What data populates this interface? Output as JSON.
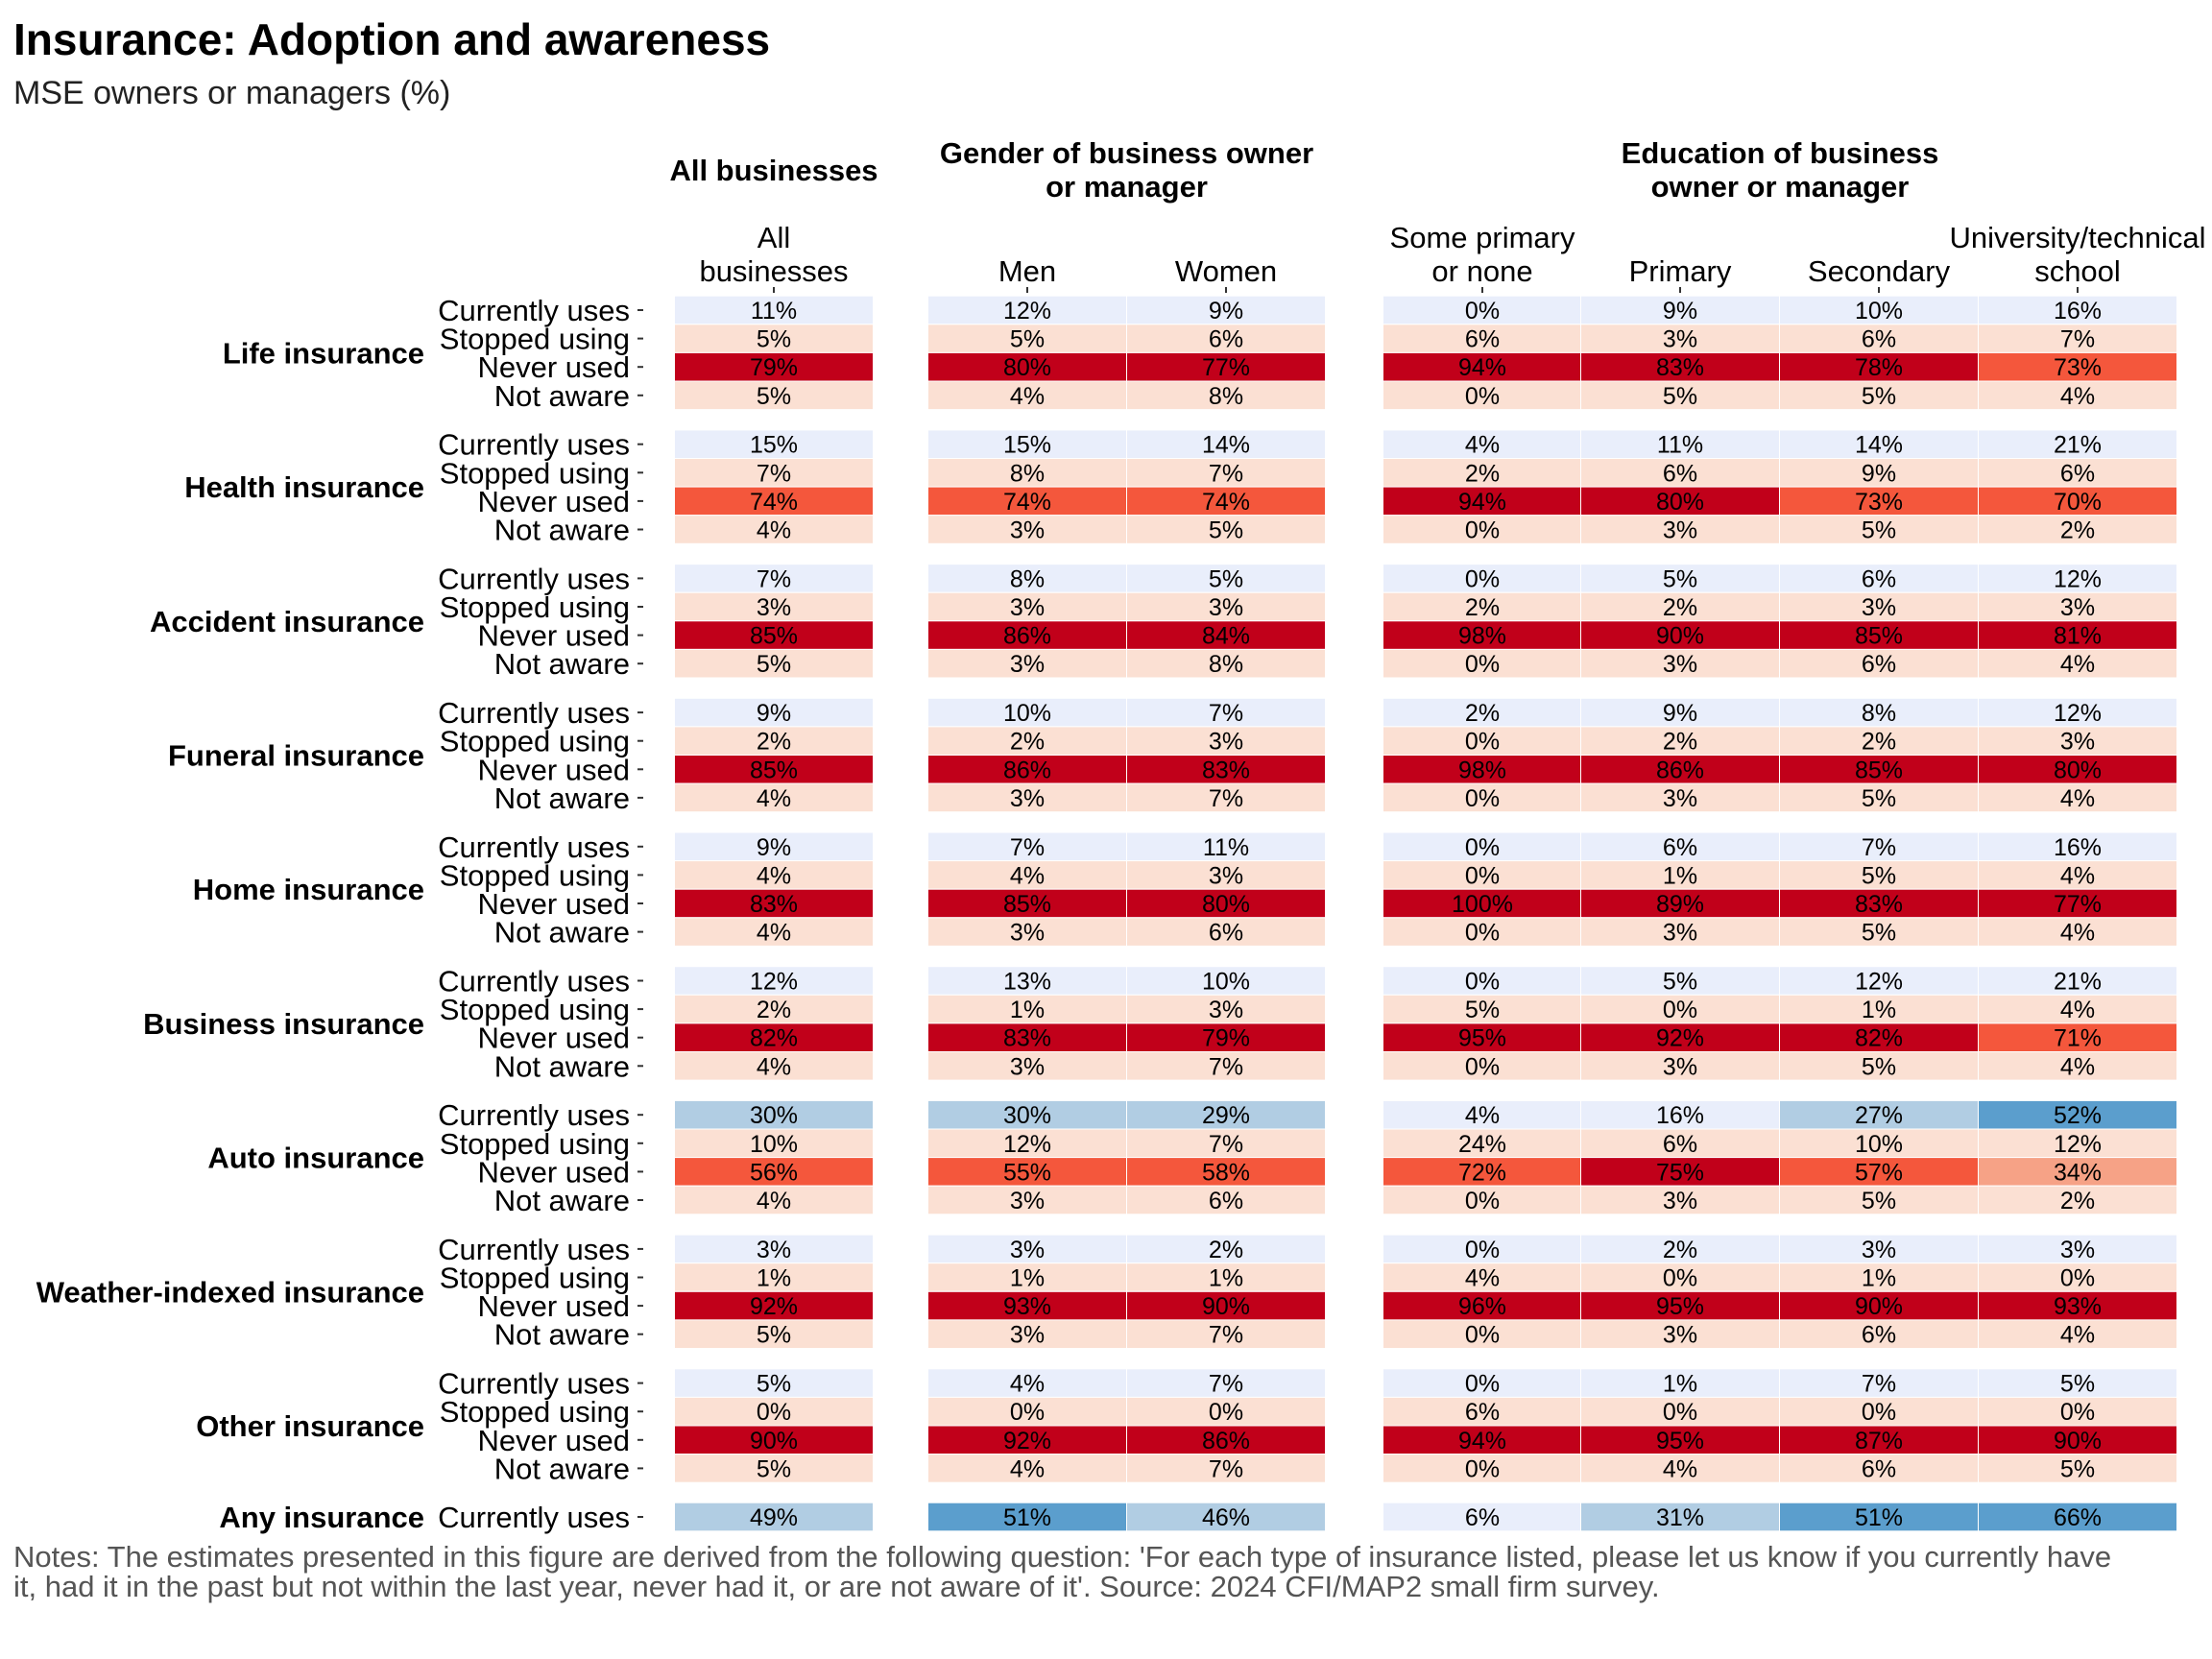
{
  "title": "Insurance: Adoption and awareness",
  "subtitle": "MSE owners or managers (%)",
  "notes": "Notes: The estimates presented in this figure are derived from the following question: 'For each type of insurance listed, please let us know if you currently have it, had it in the past but not within the last year, never had it, or are not aware of it'. Source: 2024 CFI/MAP2 small firm survey.",
  "colors": {
    "blue_dark": "#5b9ecd",
    "blue_mid": "#b1cde3",
    "blue_light": "#e9eefb",
    "red_light": "#fbe0d3",
    "red_mid_light": "#f6a286",
    "red_mid": "#f4573c",
    "red_dark": "#c1001a"
  },
  "chart_data": {
    "type": "table",
    "groups": [
      {
        "title": [
          "All businesses"
        ],
        "columns": [
          [
            "All",
            "businesses"
          ]
        ]
      },
      {
        "title": [
          "Gender of business owner",
          "or manager"
        ],
        "columns": [
          [
            "Men"
          ],
          [
            "Women"
          ]
        ]
      },
      {
        "title": [
          "Education of business",
          "owner or manager"
        ],
        "columns": [
          [
            "Some primary",
            "or none"
          ],
          [
            "Primary"
          ],
          [
            "Secondary"
          ],
          [
            "University/technical",
            "school"
          ]
        ]
      }
    ],
    "sections": [
      {
        "name": "Life insurance",
        "rows": [
          {
            "label": "Currently uses",
            "values": [
              "11%",
              "12%",
              "9%",
              "0%",
              "9%",
              "10%",
              "16%"
            ],
            "colors": [
              "blue_light",
              "blue_light",
              "blue_light",
              "blue_light",
              "blue_light",
              "blue_light",
              "blue_light"
            ]
          },
          {
            "label": "Stopped using",
            "values": [
              "5%",
              "5%",
              "6%",
              "6%",
              "3%",
              "6%",
              "7%"
            ],
            "colors": [
              "red_light",
              "red_light",
              "red_light",
              "red_light",
              "red_light",
              "red_light",
              "red_light"
            ]
          },
          {
            "label": "Never used",
            "values": [
              "79%",
              "80%",
              "77%",
              "94%",
              "83%",
              "78%",
              "73%"
            ],
            "colors": [
              "red_dark",
              "red_dark",
              "red_dark",
              "red_dark",
              "red_dark",
              "red_dark",
              "red_mid"
            ]
          },
          {
            "label": "Not aware",
            "values": [
              "5%",
              "4%",
              "8%",
              "0%",
              "5%",
              "5%",
              "4%"
            ],
            "colors": [
              "red_light",
              "red_light",
              "red_light",
              "red_light",
              "red_light",
              "red_light",
              "red_light"
            ]
          }
        ]
      },
      {
        "name": "Health insurance",
        "rows": [
          {
            "label": "Currently uses",
            "values": [
              "15%",
              "15%",
              "14%",
              "4%",
              "11%",
              "14%",
              "21%"
            ],
            "colors": [
              "blue_light",
              "blue_light",
              "blue_light",
              "blue_light",
              "blue_light",
              "blue_light",
              "blue_light"
            ]
          },
          {
            "label": "Stopped using",
            "values": [
              "7%",
              "8%",
              "7%",
              "2%",
              "6%",
              "9%",
              "6%"
            ],
            "colors": [
              "red_light",
              "red_light",
              "red_light",
              "red_light",
              "red_light",
              "red_light",
              "red_light"
            ]
          },
          {
            "label": "Never used",
            "values": [
              "74%",
              "74%",
              "74%",
              "94%",
              "80%",
              "73%",
              "70%"
            ],
            "colors": [
              "red_mid",
              "red_mid",
              "red_mid",
              "red_dark",
              "red_dark",
              "red_mid",
              "red_mid"
            ]
          },
          {
            "label": "Not aware",
            "values": [
              "4%",
              "3%",
              "5%",
              "0%",
              "3%",
              "5%",
              "2%"
            ],
            "colors": [
              "red_light",
              "red_light",
              "red_light",
              "red_light",
              "red_light",
              "red_light",
              "red_light"
            ]
          }
        ]
      },
      {
        "name": "Accident insurance",
        "rows": [
          {
            "label": "Currently uses",
            "values": [
              "7%",
              "8%",
              "5%",
              "0%",
              "5%",
              "6%",
              "12%"
            ],
            "colors": [
              "blue_light",
              "blue_light",
              "blue_light",
              "blue_light",
              "blue_light",
              "blue_light",
              "blue_light"
            ]
          },
          {
            "label": "Stopped using",
            "values": [
              "3%",
              "3%",
              "3%",
              "2%",
              "2%",
              "3%",
              "3%"
            ],
            "colors": [
              "red_light",
              "red_light",
              "red_light",
              "red_light",
              "red_light",
              "red_light",
              "red_light"
            ]
          },
          {
            "label": "Never used",
            "values": [
              "85%",
              "86%",
              "84%",
              "98%",
              "90%",
              "85%",
              "81%"
            ],
            "colors": [
              "red_dark",
              "red_dark",
              "red_dark",
              "red_dark",
              "red_dark",
              "red_dark",
              "red_dark"
            ]
          },
          {
            "label": "Not aware",
            "values": [
              "5%",
              "3%",
              "8%",
              "0%",
              "3%",
              "6%",
              "4%"
            ],
            "colors": [
              "red_light",
              "red_light",
              "red_light",
              "red_light",
              "red_light",
              "red_light",
              "red_light"
            ]
          }
        ]
      },
      {
        "name": "Funeral insurance",
        "rows": [
          {
            "label": "Currently uses",
            "values": [
              "9%",
              "10%",
              "7%",
              "2%",
              "9%",
              "8%",
              "12%"
            ],
            "colors": [
              "blue_light",
              "blue_light",
              "blue_light",
              "blue_light",
              "blue_light",
              "blue_light",
              "blue_light"
            ]
          },
          {
            "label": "Stopped using",
            "values": [
              "2%",
              "2%",
              "3%",
              "0%",
              "2%",
              "2%",
              "3%"
            ],
            "colors": [
              "red_light",
              "red_light",
              "red_light",
              "red_light",
              "red_light",
              "red_light",
              "red_light"
            ]
          },
          {
            "label": "Never used",
            "values": [
              "85%",
              "86%",
              "83%",
              "98%",
              "86%",
              "85%",
              "80%"
            ],
            "colors": [
              "red_dark",
              "red_dark",
              "red_dark",
              "red_dark",
              "red_dark",
              "red_dark",
              "red_dark"
            ]
          },
          {
            "label": "Not aware",
            "values": [
              "4%",
              "3%",
              "7%",
              "0%",
              "3%",
              "5%",
              "4%"
            ],
            "colors": [
              "red_light",
              "red_light",
              "red_light",
              "red_light",
              "red_light",
              "red_light",
              "red_light"
            ]
          }
        ]
      },
      {
        "name": "Home insurance",
        "rows": [
          {
            "label": "Currently uses",
            "values": [
              "9%",
              "7%",
              "11%",
              "0%",
              "6%",
              "7%",
              "16%"
            ],
            "colors": [
              "blue_light",
              "blue_light",
              "blue_light",
              "blue_light",
              "blue_light",
              "blue_light",
              "blue_light"
            ]
          },
          {
            "label": "Stopped using",
            "values": [
              "4%",
              "4%",
              "3%",
              "0%",
              "1%",
              "5%",
              "4%"
            ],
            "colors": [
              "red_light",
              "red_light",
              "red_light",
              "red_light",
              "red_light",
              "red_light",
              "red_light"
            ]
          },
          {
            "label": "Never used",
            "values": [
              "83%",
              "85%",
              "80%",
              "100%",
              "89%",
              "83%",
              "77%"
            ],
            "colors": [
              "red_dark",
              "red_dark",
              "red_dark",
              "red_dark",
              "red_dark",
              "red_dark",
              "red_dark"
            ]
          },
          {
            "label": "Not aware",
            "values": [
              "4%",
              "3%",
              "6%",
              "0%",
              "3%",
              "5%",
              "4%"
            ],
            "colors": [
              "red_light",
              "red_light",
              "red_light",
              "red_light",
              "red_light",
              "red_light",
              "red_light"
            ]
          }
        ]
      },
      {
        "name": "Business insurance",
        "rows": [
          {
            "label": "Currently uses",
            "values": [
              "12%",
              "13%",
              "10%",
              "0%",
              "5%",
              "12%",
              "21%"
            ],
            "colors": [
              "blue_light",
              "blue_light",
              "blue_light",
              "blue_light",
              "blue_light",
              "blue_light",
              "blue_light"
            ]
          },
          {
            "label": "Stopped using",
            "values": [
              "2%",
              "1%",
              "3%",
              "5%",
              "0%",
              "1%",
              "4%"
            ],
            "colors": [
              "red_light",
              "red_light",
              "red_light",
              "red_light",
              "red_light",
              "red_light",
              "red_light"
            ]
          },
          {
            "label": "Never used",
            "values": [
              "82%",
              "83%",
              "79%",
              "95%",
              "92%",
              "82%",
              "71%"
            ],
            "colors": [
              "red_dark",
              "red_dark",
              "red_dark",
              "red_dark",
              "red_dark",
              "red_dark",
              "red_mid"
            ]
          },
          {
            "label": "Not aware",
            "values": [
              "4%",
              "3%",
              "7%",
              "0%",
              "3%",
              "5%",
              "4%"
            ],
            "colors": [
              "red_light",
              "red_light",
              "red_light",
              "red_light",
              "red_light",
              "red_light",
              "red_light"
            ]
          }
        ]
      },
      {
        "name": "Auto insurance",
        "rows": [
          {
            "label": "Currently uses",
            "values": [
              "30%",
              "30%",
              "29%",
              "4%",
              "16%",
              "27%",
              "52%"
            ],
            "colors": [
              "blue_mid",
              "blue_mid",
              "blue_mid",
              "blue_light",
              "blue_light",
              "blue_mid",
              "blue_dark"
            ]
          },
          {
            "label": "Stopped using",
            "values": [
              "10%",
              "12%",
              "7%",
              "24%",
              "6%",
              "10%",
              "12%"
            ],
            "colors": [
              "red_light",
              "red_light",
              "red_light",
              "red_light",
              "red_light",
              "red_light",
              "red_light"
            ]
          },
          {
            "label": "Never used",
            "values": [
              "56%",
              "55%",
              "58%",
              "72%",
              "75%",
              "57%",
              "34%"
            ],
            "colors": [
              "red_mid",
              "red_mid",
              "red_mid",
              "red_mid",
              "red_dark",
              "red_mid",
              "red_mid_light"
            ]
          },
          {
            "label": "Not aware",
            "values": [
              "4%",
              "3%",
              "6%",
              "0%",
              "3%",
              "5%",
              "2%"
            ],
            "colors": [
              "red_light",
              "red_light",
              "red_light",
              "red_light",
              "red_light",
              "red_light",
              "red_light"
            ]
          }
        ]
      },
      {
        "name": "Weather-indexed insurance",
        "rows": [
          {
            "label": "Currently uses",
            "values": [
              "3%",
              "3%",
              "2%",
              "0%",
              "2%",
              "3%",
              "3%"
            ],
            "colors": [
              "blue_light",
              "blue_light",
              "blue_light",
              "blue_light",
              "blue_light",
              "blue_light",
              "blue_light"
            ]
          },
          {
            "label": "Stopped using",
            "values": [
              "1%",
              "1%",
              "1%",
              "4%",
              "0%",
              "1%",
              "0%"
            ],
            "colors": [
              "red_light",
              "red_light",
              "red_light",
              "red_light",
              "red_light",
              "red_light",
              "red_light"
            ]
          },
          {
            "label": "Never used",
            "values": [
              "92%",
              "93%",
              "90%",
              "96%",
              "95%",
              "90%",
              "93%"
            ],
            "colors": [
              "red_dark",
              "red_dark",
              "red_dark",
              "red_dark",
              "red_dark",
              "red_dark",
              "red_dark"
            ]
          },
          {
            "label": "Not aware",
            "values": [
              "5%",
              "3%",
              "7%",
              "0%",
              "3%",
              "6%",
              "4%"
            ],
            "colors": [
              "red_light",
              "red_light",
              "red_light",
              "red_light",
              "red_light",
              "red_light",
              "red_light"
            ]
          }
        ]
      },
      {
        "name": "Other insurance",
        "rows": [
          {
            "label": "Currently uses",
            "values": [
              "5%",
              "4%",
              "7%",
              "0%",
              "1%",
              "7%",
              "5%"
            ],
            "colors": [
              "blue_light",
              "blue_light",
              "blue_light",
              "blue_light",
              "blue_light",
              "blue_light",
              "blue_light"
            ]
          },
          {
            "label": "Stopped using",
            "values": [
              "0%",
              "0%",
              "0%",
              "6%",
              "0%",
              "0%",
              "0%"
            ],
            "colors": [
              "red_light",
              "red_light",
              "red_light",
              "red_light",
              "red_light",
              "red_light",
              "red_light"
            ]
          },
          {
            "label": "Never used",
            "values": [
              "90%",
              "92%",
              "86%",
              "94%",
              "95%",
              "87%",
              "90%"
            ],
            "colors": [
              "red_dark",
              "red_dark",
              "red_dark",
              "red_dark",
              "red_dark",
              "red_dark",
              "red_dark"
            ]
          },
          {
            "label": "Not aware",
            "values": [
              "5%",
              "4%",
              "7%",
              "0%",
              "4%",
              "6%",
              "5%"
            ],
            "colors": [
              "red_light",
              "red_light",
              "red_light",
              "red_light",
              "red_light",
              "red_light",
              "red_light"
            ]
          }
        ]
      },
      {
        "name": "Any insurance",
        "rows": [
          {
            "label": "Currently uses",
            "values": [
              "49%",
              "51%",
              "46%",
              "6%",
              "31%",
              "51%",
              "66%"
            ],
            "colors": [
              "blue_mid",
              "blue_dark",
              "blue_mid",
              "blue_light",
              "blue_mid",
              "blue_dark",
              "blue_dark"
            ]
          }
        ]
      }
    ]
  }
}
